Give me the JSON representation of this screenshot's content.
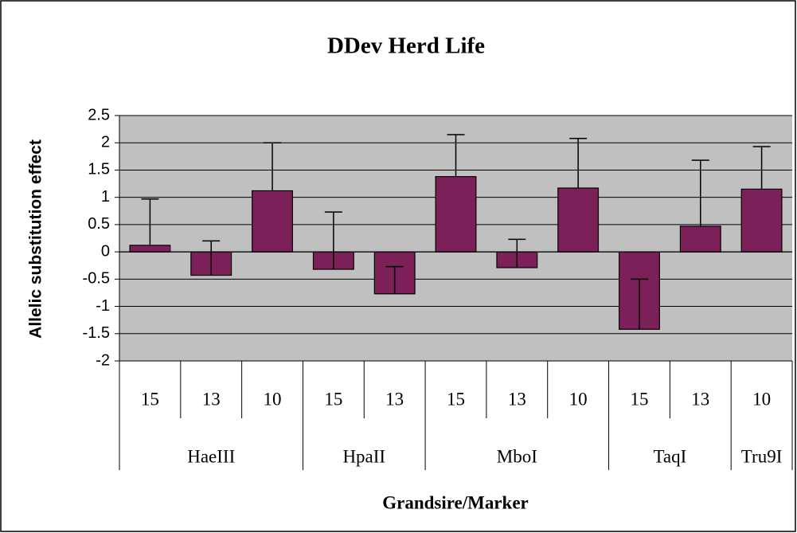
{
  "chart_data": {
    "type": "bar",
    "title": "DDev Herd Life",
    "ylabel": "Allelic substitution effect",
    "xlabel": "Grandsire/Marker",
    "groups": [
      {
        "name": "HaeIII",
        "categories": [
          "15",
          "13",
          "10"
        ]
      },
      {
        "name": "HpaII",
        "categories": [
          "15",
          "13"
        ]
      },
      {
        "name": "MboI",
        "categories": [
          "15",
          "13",
          "10"
        ]
      },
      {
        "name": "TaqI",
        "categories": [
          "15",
          "13"
        ]
      },
      {
        "name": "Tru9I",
        "categories": [
          "10"
        ]
      }
    ],
    "values": [
      0.12,
      -0.43,
      1.12,
      -0.32,
      -0.77,
      1.38,
      -0.29,
      1.17,
      -1.42,
      0.47,
      1.15
    ],
    "errors": [
      0.85,
      0.63,
      0.88,
      1.05,
      0.5,
      0.77,
      0.52,
      0.91,
      0.92,
      1.21,
      0.78
    ],
    "color": "#7b2058",
    "ylim": [
      -2,
      2.5
    ],
    "yticks": [
      -2,
      -1.5,
      -1,
      -0.5,
      0,
      0.5,
      1,
      1.5,
      2,
      2.5
    ],
    "grid": true
  }
}
